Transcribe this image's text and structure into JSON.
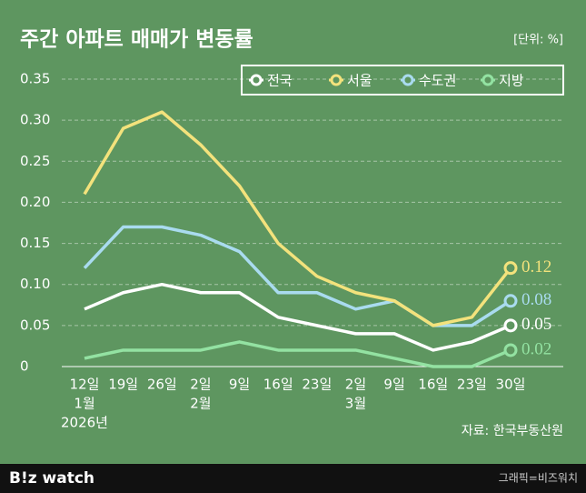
{
  "chart_data": {
    "type": "line",
    "title": "주간 아파트 매매가 변동률",
    "unit": "[단위: %]",
    "source": "자료: 한국부동산원",
    "categories": [
      [
        "12일",
        "1월",
        "2026년"
      ],
      [
        "19일"
      ],
      [
        "26일"
      ],
      [
        "2일",
        "2월"
      ],
      [
        "9일"
      ],
      [
        "16일"
      ],
      [
        "23일"
      ],
      [
        "2일",
        "3월"
      ],
      [
        "9일"
      ],
      [
        "16일"
      ],
      [
        "23일"
      ],
      [
        "30일"
      ]
    ],
    "series": [
      {
        "name": "전국",
        "color": "#ffffff",
        "values": [
          0.07,
          0.09,
          0.1,
          0.09,
          0.09,
          0.06,
          0.05,
          0.04,
          0.04,
          0.02,
          0.03,
          0.05
        ]
      },
      {
        "name": "서울",
        "color": "#f3e27c",
        "values": [
          0.21,
          0.29,
          0.31,
          0.27,
          0.22,
          0.15,
          0.11,
          0.09,
          0.08,
          0.05,
          0.06,
          0.12
        ]
      },
      {
        "name": "수도권",
        "color": "#a9dbef",
        "values": [
          0.12,
          0.17,
          0.17,
          0.16,
          0.14,
          0.09,
          0.09,
          0.07,
          0.08,
          0.05,
          0.05,
          0.08
        ]
      },
      {
        "name": "지방",
        "color": "#93e2a2",
        "values": [
          0.01,
          0.02,
          0.02,
          0.02,
          0.03,
          0.02,
          0.02,
          0.02,
          0.01,
          0,
          0,
          0.02
        ]
      }
    ],
    "ylim": [
      0,
      0.35
    ],
    "yticks": [
      0,
      0.05,
      {
        "value": 0.1,
        "label": "0.10"
      },
      0.15,
      {
        "value": 0.2,
        "label": "0.20"
      },
      0.25,
      {
        "value": 0.3,
        "label": "0.30"
      },
      0.35
    ],
    "grid": true
  },
  "footer": {
    "logo": "B!z watch",
    "credit": "그래픽=비즈워치"
  }
}
